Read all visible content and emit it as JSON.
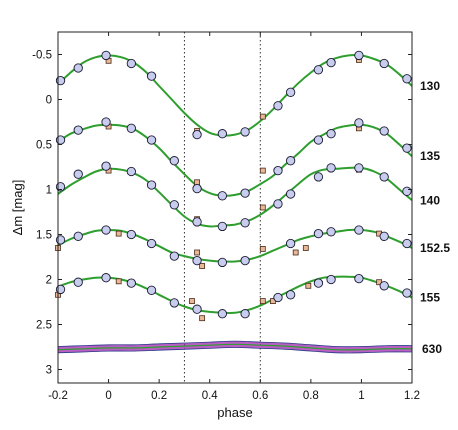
{
  "chart_data": {
    "type": "scatter",
    "title": "",
    "xlabel": "phase",
    "ylabel": "Δm  [mag]",
    "xlim": [
      -0.2,
      1.2
    ],
    "ylim": [
      3.15,
      -0.75
    ],
    "y_inverted": true,
    "grid": false,
    "x_ticks": [
      "-0.2",
      "0",
      "0.2",
      "0.4",
      "0.6",
      "0.8",
      "1",
      "1.2"
    ],
    "y_ticks": [
      "-0.5",
      "0",
      "0.5",
      "1",
      "1.5",
      "2",
      "2.5",
      "3"
    ],
    "x_tick_values": [
      -0.2,
      0,
      0.2,
      0.4,
      0.6,
      0.8,
      1.0,
      1.2
    ],
    "y_tick_values": [
      -0.5,
      0,
      0.5,
      1,
      1.5,
      2,
      2.5,
      3
    ],
    "vertical_lines": [
      0.3,
      0.6
    ],
    "colors": {
      "fit_line": "#2e9e2e",
      "circle_fill": "#c8cdee",
      "square_fill": "#e8b898",
      "band": "#a02ab0",
      "band_edge": "#2a3a88"
    },
    "series": [
      {
        "name": "130",
        "fit": [
          [
            -0.2,
            -0.17
          ],
          [
            -0.15,
            -0.3
          ],
          [
            -0.1,
            -0.41
          ],
          [
            -0.05,
            -0.47
          ],
          [
            0.0,
            -0.49
          ],
          [
            0.05,
            -0.47
          ],
          [
            0.1,
            -0.41
          ],
          [
            0.15,
            -0.3
          ],
          [
            0.2,
            -0.15
          ],
          [
            0.25,
            0.0
          ],
          [
            0.3,
            0.15
          ],
          [
            0.35,
            0.28
          ],
          [
            0.4,
            0.37
          ],
          [
            0.45,
            0.4
          ],
          [
            0.5,
            0.39
          ],
          [
            0.55,
            0.34
          ],
          [
            0.6,
            0.24
          ],
          [
            0.65,
            0.11
          ],
          [
            0.7,
            -0.04
          ],
          [
            0.75,
            -0.18
          ],
          [
            0.8,
            -0.3
          ],
          [
            0.85,
            -0.4
          ],
          [
            0.9,
            -0.46
          ],
          [
            0.95,
            -0.49
          ],
          [
            1.0,
            -0.49
          ],
          [
            1.05,
            -0.45
          ],
          [
            1.1,
            -0.39
          ],
          [
            1.15,
            -0.28
          ],
          [
            1.2,
            -0.15
          ]
        ],
        "circles": [
          [
            -0.19,
            -0.21
          ],
          [
            -0.12,
            -0.35
          ],
          [
            -0.01,
            -0.49
          ],
          [
            0.09,
            -0.4
          ],
          [
            0.17,
            -0.26
          ],
          [
            0.35,
            0.39
          ],
          [
            0.45,
            0.38
          ],
          [
            0.54,
            0.36
          ],
          [
            0.67,
            0.07
          ],
          [
            0.72,
            -0.08
          ],
          [
            0.83,
            -0.33
          ],
          [
            0.88,
            -0.41
          ],
          [
            0.99,
            -0.49
          ],
          [
            1.09,
            -0.4
          ],
          [
            1.18,
            -0.23
          ]
        ],
        "squares": [
          [
            0.0,
            -0.43
          ],
          [
            0.35,
            0.35
          ],
          [
            0.61,
            0.19
          ],
          [
            0.99,
            -0.44
          ]
        ]
      },
      {
        "name": "135",
        "fit": [
          [
            -0.2,
            0.47
          ],
          [
            -0.15,
            0.38
          ],
          [
            -0.1,
            0.33
          ],
          [
            -0.05,
            0.29
          ],
          [
            0.0,
            0.28
          ],
          [
            0.05,
            0.29
          ],
          [
            0.1,
            0.33
          ],
          [
            0.15,
            0.42
          ],
          [
            0.2,
            0.54
          ],
          [
            0.25,
            0.69
          ],
          [
            0.3,
            0.83
          ],
          [
            0.35,
            0.96
          ],
          [
            0.4,
            1.04
          ],
          [
            0.45,
            1.07
          ],
          [
            0.5,
            1.06
          ],
          [
            0.55,
            1.02
          ],
          [
            0.6,
            0.94
          ],
          [
            0.65,
            0.85
          ],
          [
            0.7,
            0.72
          ],
          [
            0.75,
            0.6
          ],
          [
            0.8,
            0.47
          ],
          [
            0.85,
            0.39
          ],
          [
            0.9,
            0.32
          ],
          [
            0.95,
            0.29
          ],
          [
            1.0,
            0.28
          ],
          [
            1.05,
            0.31
          ],
          [
            1.1,
            0.38
          ],
          [
            1.15,
            0.5
          ],
          [
            1.2,
            0.63
          ]
        ],
        "circles": [
          [
            -0.19,
            0.45
          ],
          [
            -0.12,
            0.34
          ],
          [
            -0.01,
            0.25
          ],
          [
            0.09,
            0.32
          ],
          [
            0.17,
            0.45
          ],
          [
            0.26,
            0.68
          ],
          [
            0.35,
            0.99
          ],
          [
            0.45,
            1.07
          ],
          [
            0.54,
            1.04
          ],
          [
            0.67,
            0.79
          ],
          [
            0.72,
            0.68
          ],
          [
            0.83,
            0.45
          ],
          [
            0.88,
            0.38
          ],
          [
            0.99,
            0.26
          ],
          [
            1.09,
            0.35
          ],
          [
            1.18,
            0.54
          ]
        ],
        "squares": [
          [
            0.0,
            0.3
          ],
          [
            0.35,
            0.92
          ],
          [
            0.61,
            0.79
          ],
          [
            0.99,
            0.32
          ]
        ]
      },
      {
        "name": "140",
        "fit": [
          [
            -0.2,
            1.05
          ],
          [
            -0.15,
            0.95
          ],
          [
            -0.1,
            0.87
          ],
          [
            -0.05,
            0.8
          ],
          [
            0.0,
            0.77
          ],
          [
            0.05,
            0.78
          ],
          [
            0.1,
            0.82
          ],
          [
            0.15,
            0.9
          ],
          [
            0.2,
            1.03
          ],
          [
            0.25,
            1.17
          ],
          [
            0.3,
            1.3
          ],
          [
            0.35,
            1.38
          ],
          [
            0.4,
            1.41
          ],
          [
            0.45,
            1.4
          ],
          [
            0.5,
            1.39
          ],
          [
            0.55,
            1.35
          ],
          [
            0.6,
            1.28
          ],
          [
            0.65,
            1.18
          ],
          [
            0.7,
            1.06
          ],
          [
            0.75,
            0.94
          ],
          [
            0.8,
            0.83
          ],
          [
            0.85,
            0.78
          ],
          [
            0.9,
            0.77
          ],
          [
            0.95,
            0.76
          ],
          [
            1.0,
            0.76
          ],
          [
            1.05,
            0.8
          ],
          [
            1.1,
            0.88
          ],
          [
            1.15,
            1.0
          ],
          [
            1.2,
            1.12
          ]
        ],
        "circles": [
          [
            -0.19,
            0.97
          ],
          [
            -0.12,
            0.83
          ],
          [
            -0.01,
            0.74
          ],
          [
            0.09,
            0.8
          ],
          [
            0.17,
            0.95
          ],
          [
            0.26,
            1.17
          ],
          [
            0.35,
            1.36
          ],
          [
            0.45,
            1.41
          ],
          [
            0.54,
            1.37
          ],
          [
            0.67,
            1.16
          ],
          [
            0.72,
            1.05
          ],
          [
            0.83,
            0.86
          ],
          [
            0.88,
            0.76
          ],
          [
            0.99,
            0.76
          ],
          [
            1.09,
            0.86
          ],
          [
            1.18,
            1.02
          ]
        ],
        "squares": [
          [
            0.0,
            0.79
          ],
          [
            0.35,
            1.33
          ],
          [
            0.61,
            1.2
          ],
          [
            0.99,
            0.78
          ]
        ]
      },
      {
        "name": "152.5",
        "fit": [
          [
            -0.2,
            1.62
          ],
          [
            -0.15,
            1.55
          ],
          [
            -0.1,
            1.5
          ],
          [
            -0.05,
            1.46
          ],
          [
            0.0,
            1.45
          ],
          [
            0.05,
            1.46
          ],
          [
            0.1,
            1.5
          ],
          [
            0.15,
            1.56
          ],
          [
            0.2,
            1.63
          ],
          [
            0.25,
            1.7
          ],
          [
            0.3,
            1.74
          ],
          [
            0.35,
            1.77
          ],
          [
            0.4,
            1.79
          ],
          [
            0.45,
            1.8
          ],
          [
            0.5,
            1.8
          ],
          [
            0.55,
            1.78
          ],
          [
            0.6,
            1.74
          ],
          [
            0.65,
            1.68
          ],
          [
            0.7,
            1.62
          ],
          [
            0.75,
            1.56
          ],
          [
            0.8,
            1.52
          ],
          [
            0.85,
            1.49
          ],
          [
            0.9,
            1.47
          ],
          [
            0.95,
            1.45
          ],
          [
            1.0,
            1.45
          ],
          [
            1.05,
            1.47
          ],
          [
            1.1,
            1.52
          ],
          [
            1.15,
            1.58
          ],
          [
            1.2,
            1.65
          ]
        ],
        "circles": [
          [
            -0.19,
            1.56
          ],
          [
            -0.12,
            1.52
          ],
          [
            -0.01,
            1.45
          ],
          [
            0.09,
            1.5
          ],
          [
            0.17,
            1.6
          ],
          [
            0.26,
            1.74
          ],
          [
            0.35,
            1.79
          ],
          [
            0.45,
            1.81
          ],
          [
            0.54,
            1.79
          ],
          [
            0.72,
            1.6
          ],
          [
            0.83,
            1.49
          ],
          [
            0.88,
            1.47
          ],
          [
            0.99,
            1.45
          ],
          [
            1.09,
            1.52
          ],
          [
            1.18,
            1.6
          ]
        ],
        "squares": [
          [
            -0.2,
            1.65
          ],
          [
            0.04,
            1.49
          ],
          [
            0.35,
            1.7
          ],
          [
            0.37,
            1.85
          ],
          [
            0.61,
            1.66
          ],
          [
            0.74,
            1.7
          ],
          [
            0.78,
            1.65
          ],
          [
            1.07,
            1.49
          ]
        ]
      },
      {
        "name": "155",
        "fit": [
          [
            -0.2,
            2.08
          ],
          [
            -0.15,
            2.03
          ],
          [
            -0.1,
            2.0
          ],
          [
            -0.05,
            1.98
          ],
          [
            0.0,
            1.98
          ],
          [
            0.05,
            2.0
          ],
          [
            0.1,
            2.04
          ],
          [
            0.15,
            2.1
          ],
          [
            0.2,
            2.17
          ],
          [
            0.25,
            2.24
          ],
          [
            0.3,
            2.3
          ],
          [
            0.35,
            2.34
          ],
          [
            0.4,
            2.36
          ],
          [
            0.45,
            2.37
          ],
          [
            0.5,
            2.37
          ],
          [
            0.55,
            2.34
          ],
          [
            0.6,
            2.29
          ],
          [
            0.65,
            2.22
          ],
          [
            0.7,
            2.15
          ],
          [
            0.75,
            2.08
          ],
          [
            0.8,
            2.02
          ],
          [
            0.85,
            1.98
          ],
          [
            0.9,
            1.97
          ],
          [
            0.95,
            1.97
          ],
          [
            1.0,
            1.98
          ],
          [
            1.05,
            2.02
          ],
          [
            1.1,
            2.07
          ],
          [
            1.15,
            2.13
          ],
          [
            1.2,
            2.2
          ]
        ],
        "circles": [
          [
            -0.19,
            2.11
          ],
          [
            -0.12,
            2.03
          ],
          [
            -0.01,
            1.98
          ],
          [
            0.09,
            2.04
          ],
          [
            0.17,
            2.12
          ],
          [
            0.26,
            2.26
          ],
          [
            0.35,
            2.33
          ],
          [
            0.45,
            2.38
          ],
          [
            0.54,
            2.38
          ],
          [
            0.67,
            2.2
          ],
          [
            0.72,
            2.17
          ],
          [
            0.83,
            2.04
          ],
          [
            0.88,
            2.0
          ],
          [
            0.99,
            1.99
          ],
          [
            1.09,
            2.07
          ],
          [
            1.18,
            2.15
          ]
        ],
        "squares": [
          [
            -0.2,
            2.17
          ],
          [
            0.04,
            2.02
          ],
          [
            0.33,
            2.24
          ],
          [
            0.37,
            2.43
          ],
          [
            0.61,
            2.24
          ],
          [
            0.65,
            2.24
          ],
          [
            0.79,
            2.07
          ],
          [
            1.07,
            2.03
          ]
        ]
      },
      {
        "name": "630",
        "band_center": [
          [
            -0.2,
            2.78
          ],
          [
            -0.1,
            2.77
          ],
          [
            0.0,
            2.76
          ],
          [
            0.1,
            2.76
          ],
          [
            0.2,
            2.75
          ],
          [
            0.3,
            2.74
          ],
          [
            0.4,
            2.73
          ],
          [
            0.5,
            2.72
          ],
          [
            0.6,
            2.73
          ],
          [
            0.7,
            2.74
          ],
          [
            0.8,
            2.76
          ],
          [
            0.9,
            2.78
          ],
          [
            1.0,
            2.78
          ],
          [
            1.1,
            2.77
          ],
          [
            1.2,
            2.77
          ]
        ],
        "band_halfwidth": 0.035
      }
    ]
  }
}
